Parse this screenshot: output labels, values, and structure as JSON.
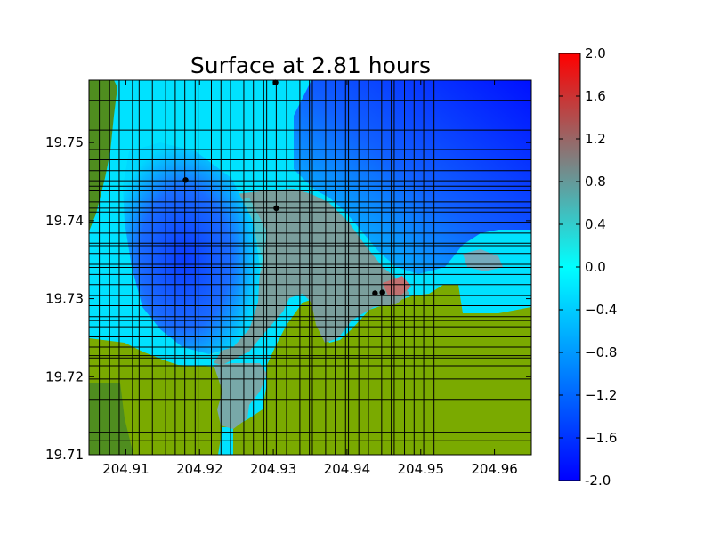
{
  "chart_data": {
    "type": "heatmap",
    "title": "Surface at 2.81 hours",
    "xlabel": "",
    "ylabel": "",
    "xlim": [
      204.905,
      204.965
    ],
    "ylim": [
      19.71,
      19.758
    ],
    "xticks": [
      "204.91",
      "204.92",
      "204.93",
      "204.94",
      "204.95",
      "204.96"
    ],
    "yticks": [
      "19.71",
      "19.72",
      "19.73",
      "19.74",
      "19.75"
    ],
    "colorbar": {
      "range": [
        -2.0,
        2.0
      ],
      "ticks": [
        "-2.0",
        "−1.6",
        "−1.2",
        "−0.8",
        "−0.4",
        "0.0",
        "0.4",
        "0.8",
        "1.2",
        "1.6",
        "2.0"
      ],
      "colors": [
        "#0000ff",
        "#00ffff",
        "#ff0000"
      ]
    },
    "land_color": "#7aaa00",
    "land_dark_color": "#4f8d1f",
    "grid_lines": {
      "vertical": [
        204.9064,
        204.9078,
        204.9091,
        204.9109,
        204.9118,
        204.9136,
        204.9154,
        204.9167,
        204.918,
        204.9194,
        204.9198,
        204.9216,
        204.9229,
        204.9242,
        204.926,
        204.9273,
        204.9287,
        204.9291,
        204.9304,
        204.9318,
        204.9336,
        204.9349,
        204.9353,
        204.9371,
        204.9384,
        204.9398,
        204.9402,
        204.9416,
        204.9429,
        204.9447,
        204.946,
        204.9464,
        204.9478,
        204.9491,
        204.9504,
        204.9518
      ],
      "horizontal": [
        19.7118,
        19.7129,
        19.7171,
        19.7197,
        19.7214,
        19.7224,
        19.7227,
        19.7238,
        19.7251,
        19.7264,
        19.7272,
        19.7277,
        19.7291,
        19.7304,
        19.7318,
        19.7331,
        19.734,
        19.7344,
        19.7358,
        19.7368,
        19.7371,
        19.7384,
        19.7398,
        19.7411,
        19.7416,
        19.7424,
        19.7438,
        19.7444,
        19.7451,
        19.7464,
        19.7478,
        19.7491,
        19.7516,
        19.7554
      ]
    },
    "gauges": [
      {
        "x": 204.9303,
        "y": 19.7577
      },
      {
        "x": 204.9181,
        "y": 19.7452
      },
      {
        "x": 204.9304,
        "y": 19.7416
      },
      {
        "x": 204.9438,
        "y": 19.7307
      },
      {
        "x": 204.9448,
        "y": 19.7308
      }
    ]
  }
}
